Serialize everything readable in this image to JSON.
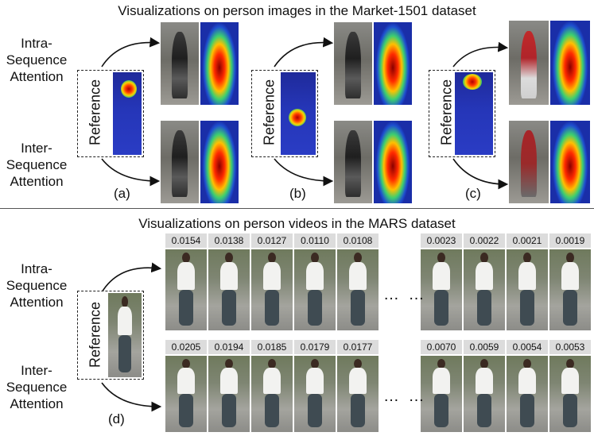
{
  "top": {
    "title": "Visualizations on person images in the Market-1501 dataset",
    "row_labels": {
      "intra": "Intra-\nSequence\nAttention",
      "inter": "Inter-\nSequence\nAttention"
    },
    "panels": [
      {
        "ref": "Reference",
        "caption": "(a)"
      },
      {
        "ref": "Reference",
        "caption": "(b)"
      },
      {
        "ref": "Reference",
        "caption": "(c)"
      }
    ]
  },
  "bottom": {
    "title": "Visualizations on person videos in the MARS dataset",
    "row_labels": {
      "intra": "Intra-\nSequence\nAttention",
      "inter": "Inter-\nSequence\nAttention"
    },
    "ref": "Reference",
    "caption": "(d)",
    "intra_scores_left": [
      "0.0154",
      "0.0138",
      "0.0127",
      "0.0110",
      "0.0108"
    ],
    "intra_scores_right": [
      "0.0023",
      "0.0022",
      "0.0021",
      "0.0019"
    ],
    "inter_scores_left": [
      "0.0205",
      "0.0194",
      "0.0185",
      "0.0179",
      "0.0177"
    ],
    "inter_scores_right": [
      "0.0070",
      "0.0059",
      "0.0054",
      "0.0053"
    ],
    "ellipsis": "… …"
  }
}
